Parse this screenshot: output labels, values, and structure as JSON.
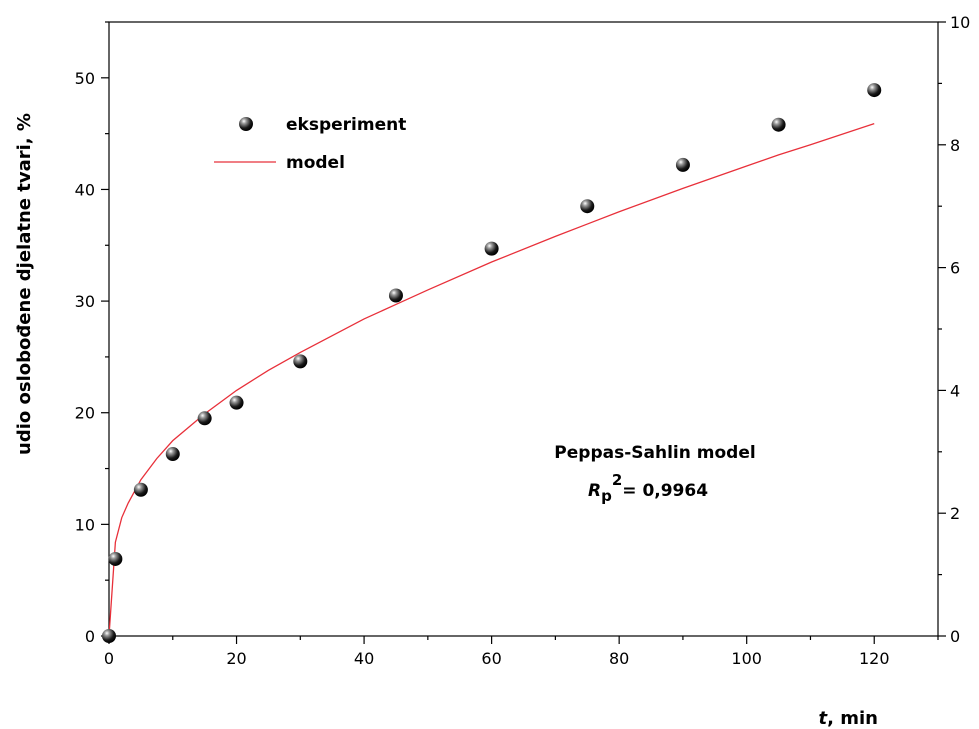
{
  "chart_data": {
    "type": "scatter",
    "xlabel_var": "t",
    "xlabel_unit": ", min",
    "ylabel": "udio oslobođene djelatne tvari, %",
    "xlim": [
      0,
      130
    ],
    "ylim": [
      0,
      55
    ],
    "y2lim": [
      0,
      10
    ],
    "x_ticks": [
      0,
      20,
      40,
      60,
      80,
      100,
      120
    ],
    "y_ticks": [
      0,
      10,
      20,
      30,
      40,
      50
    ],
    "y2_ticks": [
      0,
      2,
      4,
      6,
      8,
      10
    ],
    "grid": false,
    "legend_position": "top-left",
    "series": [
      {
        "name": "eksperiment",
        "kind": "scatter",
        "color": "#000000",
        "x": [
          0,
          1,
          5,
          10,
          15,
          20,
          30,
          45,
          60,
          75,
          90,
          105,
          120
        ],
        "y": [
          0,
          6.9,
          13.1,
          16.3,
          19.5,
          20.9,
          24.6,
          30.5,
          34.7,
          38.5,
          42.2,
          45.8,
          48.9
        ]
      },
      {
        "name": "model",
        "kind": "line",
        "color": "#e8303a",
        "x": [
          0,
          1,
          2,
          3,
          5,
          7.5,
          10,
          15,
          20,
          25,
          30,
          40,
          45,
          50,
          60,
          70,
          75,
          80,
          90,
          100,
          105,
          110,
          120
        ],
        "y": [
          0,
          8.4,
          10.6,
          11.9,
          14.0,
          15.9,
          17.5,
          19.9,
          22.0,
          23.8,
          25.4,
          28.4,
          29.7,
          31.0,
          33.5,
          35.8,
          36.9,
          38.0,
          40.1,
          42.1,
          43.1,
          44.0,
          45.9
        ]
      }
    ],
    "annotation": {
      "line1": "Peppas-Sahlin model",
      "r_symbol": "R",
      "r_sub": "p",
      "r_sup": "2",
      "r_value": "= 0,9964"
    }
  }
}
